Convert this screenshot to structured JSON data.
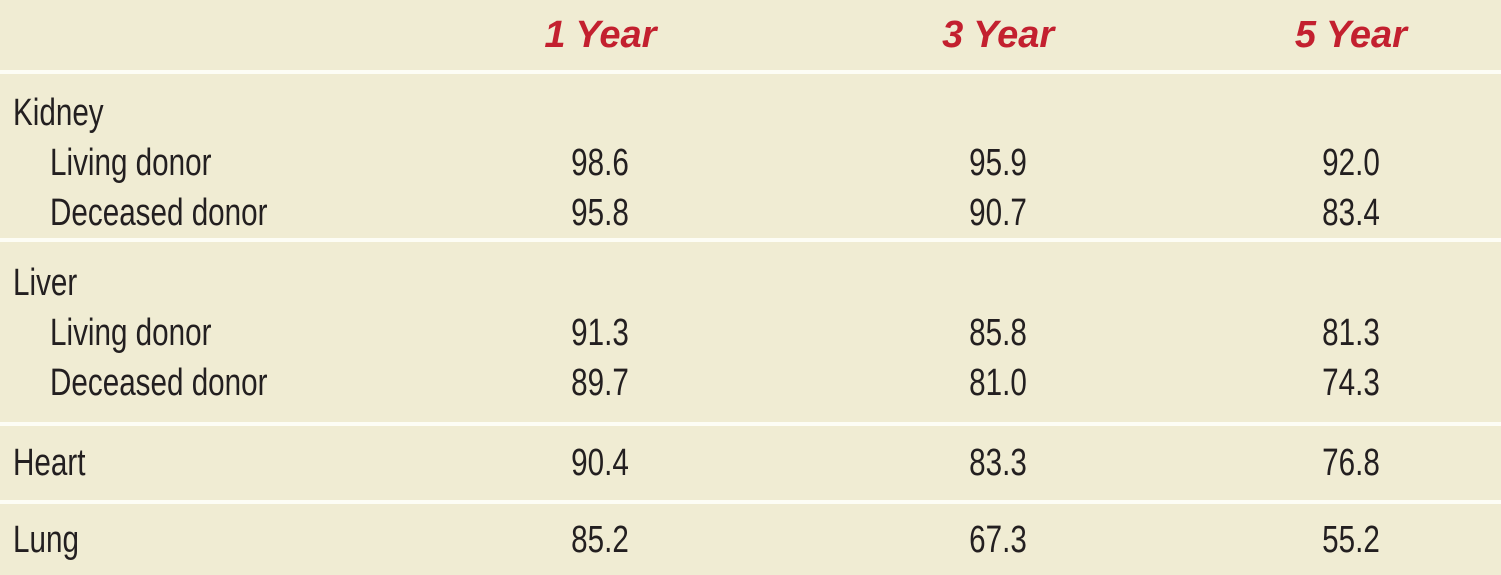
{
  "colors": {
    "background": "#F0ECD3",
    "header_text": "#C3202F",
    "body_text": "#231F20",
    "divider": "#FDFDF5"
  },
  "chart_data": {
    "type": "table",
    "columns": [
      "1 Year",
      "3 Year",
      "5 Year"
    ],
    "sections": [
      {
        "label": "Kidney",
        "rows": [
          {
            "label": "Living donor",
            "values": [
              "98.6",
              "95.9",
              "92.0"
            ]
          },
          {
            "label": "Deceased donor",
            "values": [
              "95.8",
              "90.7",
              "83.4"
            ]
          }
        ]
      },
      {
        "label": "Liver",
        "rows": [
          {
            "label": "Living donor",
            "values": [
              "91.3",
              "85.8",
              "81.3"
            ]
          },
          {
            "label": "Deceased donor",
            "values": [
              "89.7",
              "81.0",
              "74.3"
            ]
          }
        ]
      },
      {
        "label": "Heart",
        "values": [
          "90.4",
          "83.3",
          "76.8"
        ]
      },
      {
        "label": "Lung",
        "values": [
          "85.2",
          "67.3",
          "55.2"
        ]
      }
    ]
  }
}
